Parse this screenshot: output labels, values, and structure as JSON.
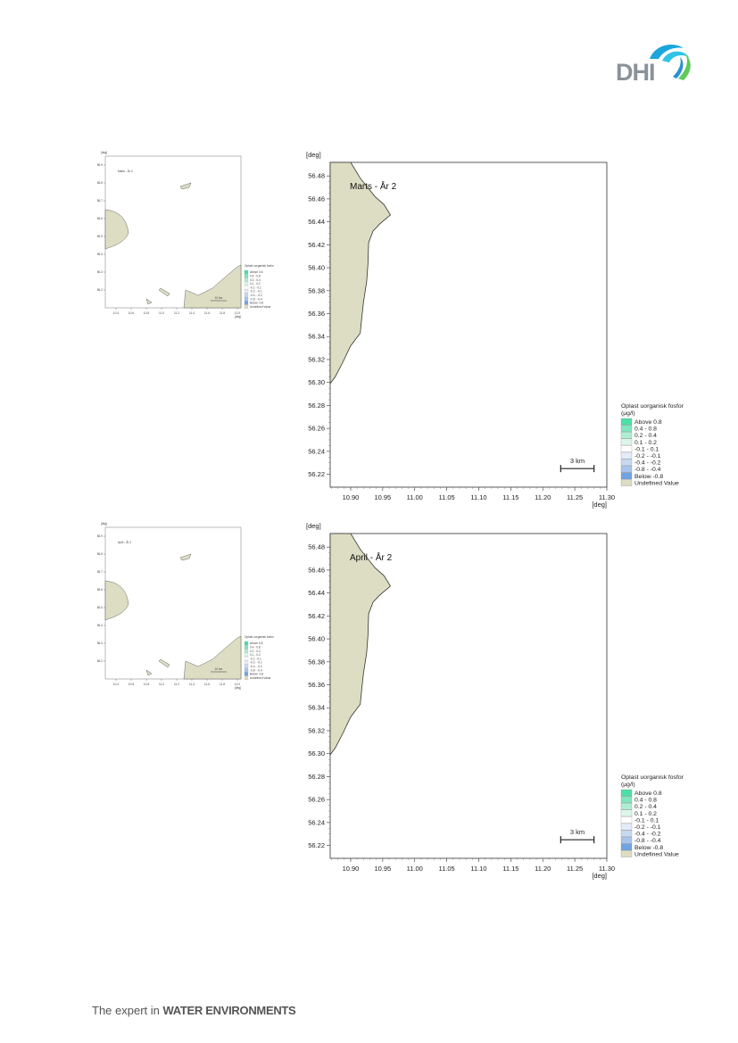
{
  "header": {
    "logo_text": "DHI"
  },
  "footer": {
    "prefix": "The expert in ",
    "emphasis": "WATER ENVIRONMENTS"
  },
  "colors": {
    "land": "#ddddc4",
    "legend": [
      "#4ddfa6",
      "#7fe6be",
      "#aeeed2",
      "#dcf6ea",
      "#ffffff",
      "#e3ecf8",
      "#c7d9f1",
      "#a7c4ec",
      "#6fa4e3",
      "#ddddc4"
    ]
  },
  "panels": [
    {
      "id": "marts",
      "title": "Marts - År 2",
      "mini_title": "Marts - År 2",
      "y_unit": "[deg]",
      "x_unit": "[deg]",
      "y_ticks": [
        "56.48",
        "56.46",
        "56.44",
        "56.42",
        "56.40",
        "56.38",
        "56.36",
        "56.34",
        "56.32",
        "56.30",
        "56.28",
        "56.26",
        "56.24",
        "56.22"
      ],
      "x_ticks": [
        "10.90",
        "10.95",
        "11.00",
        "11.05",
        "11.10",
        "11.15",
        "11.20",
        "11.25",
        "11.30"
      ],
      "mini_y_ticks": [
        "56.9",
        "56.8",
        "56.7",
        "56.6",
        "56.5",
        "56.4",
        "56.3",
        "56.2"
      ],
      "mini_x_ticks": [
        "10.4",
        "10.6",
        "10.8",
        "11.0",
        "11.2",
        "11.4",
        "11.6",
        "11.8",
        "12.0"
      ],
      "scale_label": "3 km",
      "mini_scale_label": "10 km",
      "legend": {
        "title_line1": "Oplast uorganisk fosfor",
        "title_line2": "(µg/l)",
        "items": [
          "Above  0.8",
          "0.4 -  0.8",
          "0.2 -  0.4",
          "0.1 -  0.2",
          "-0.1 -  0.1",
          "-0.2 - -0.1",
          "-0.4 - -0.2",
          "-0.8 - -0.4",
          "Below -0.8",
          "Undefined Value"
        ]
      }
    },
    {
      "id": "april",
      "title": "April - År 2",
      "mini_title": "April - År 2",
      "y_unit": "[deg]",
      "x_unit": "[deg]",
      "y_ticks": [
        "56.48",
        "56.46",
        "56.44",
        "56.42",
        "56.40",
        "56.38",
        "56.36",
        "56.34",
        "56.32",
        "56.30",
        "56.28",
        "56.26",
        "56.24",
        "56.22"
      ],
      "x_ticks": [
        "10.90",
        "10.95",
        "11.00",
        "11.05",
        "11.10",
        "11.15",
        "11.20",
        "11.25",
        "11.30"
      ],
      "mini_y_ticks": [
        "56.9",
        "56.8",
        "56.7",
        "56.6",
        "56.5",
        "56.4",
        "56.3",
        "56.2"
      ],
      "mini_x_ticks": [
        "10.4",
        "10.6",
        "10.8",
        "11.0",
        "11.2",
        "11.4",
        "11.6",
        "11.8",
        "12.0"
      ],
      "scale_label": "3 km",
      "mini_scale_label": "10 km",
      "legend": {
        "title_line1": "Oplast uorganisk fosfor",
        "title_line2": "(µg/l)",
        "items": [
          "Above  0.8",
          "0.4 -  0.8",
          "0.2 -  0.4",
          "0.1 -  0.2",
          "-0.1 -  0.1",
          "-0.2 - -0.1",
          "-0.4 - -0.2",
          "-0.8 - -0.4",
          "Below -0.8",
          "Undefined Value"
        ]
      }
    }
  ]
}
